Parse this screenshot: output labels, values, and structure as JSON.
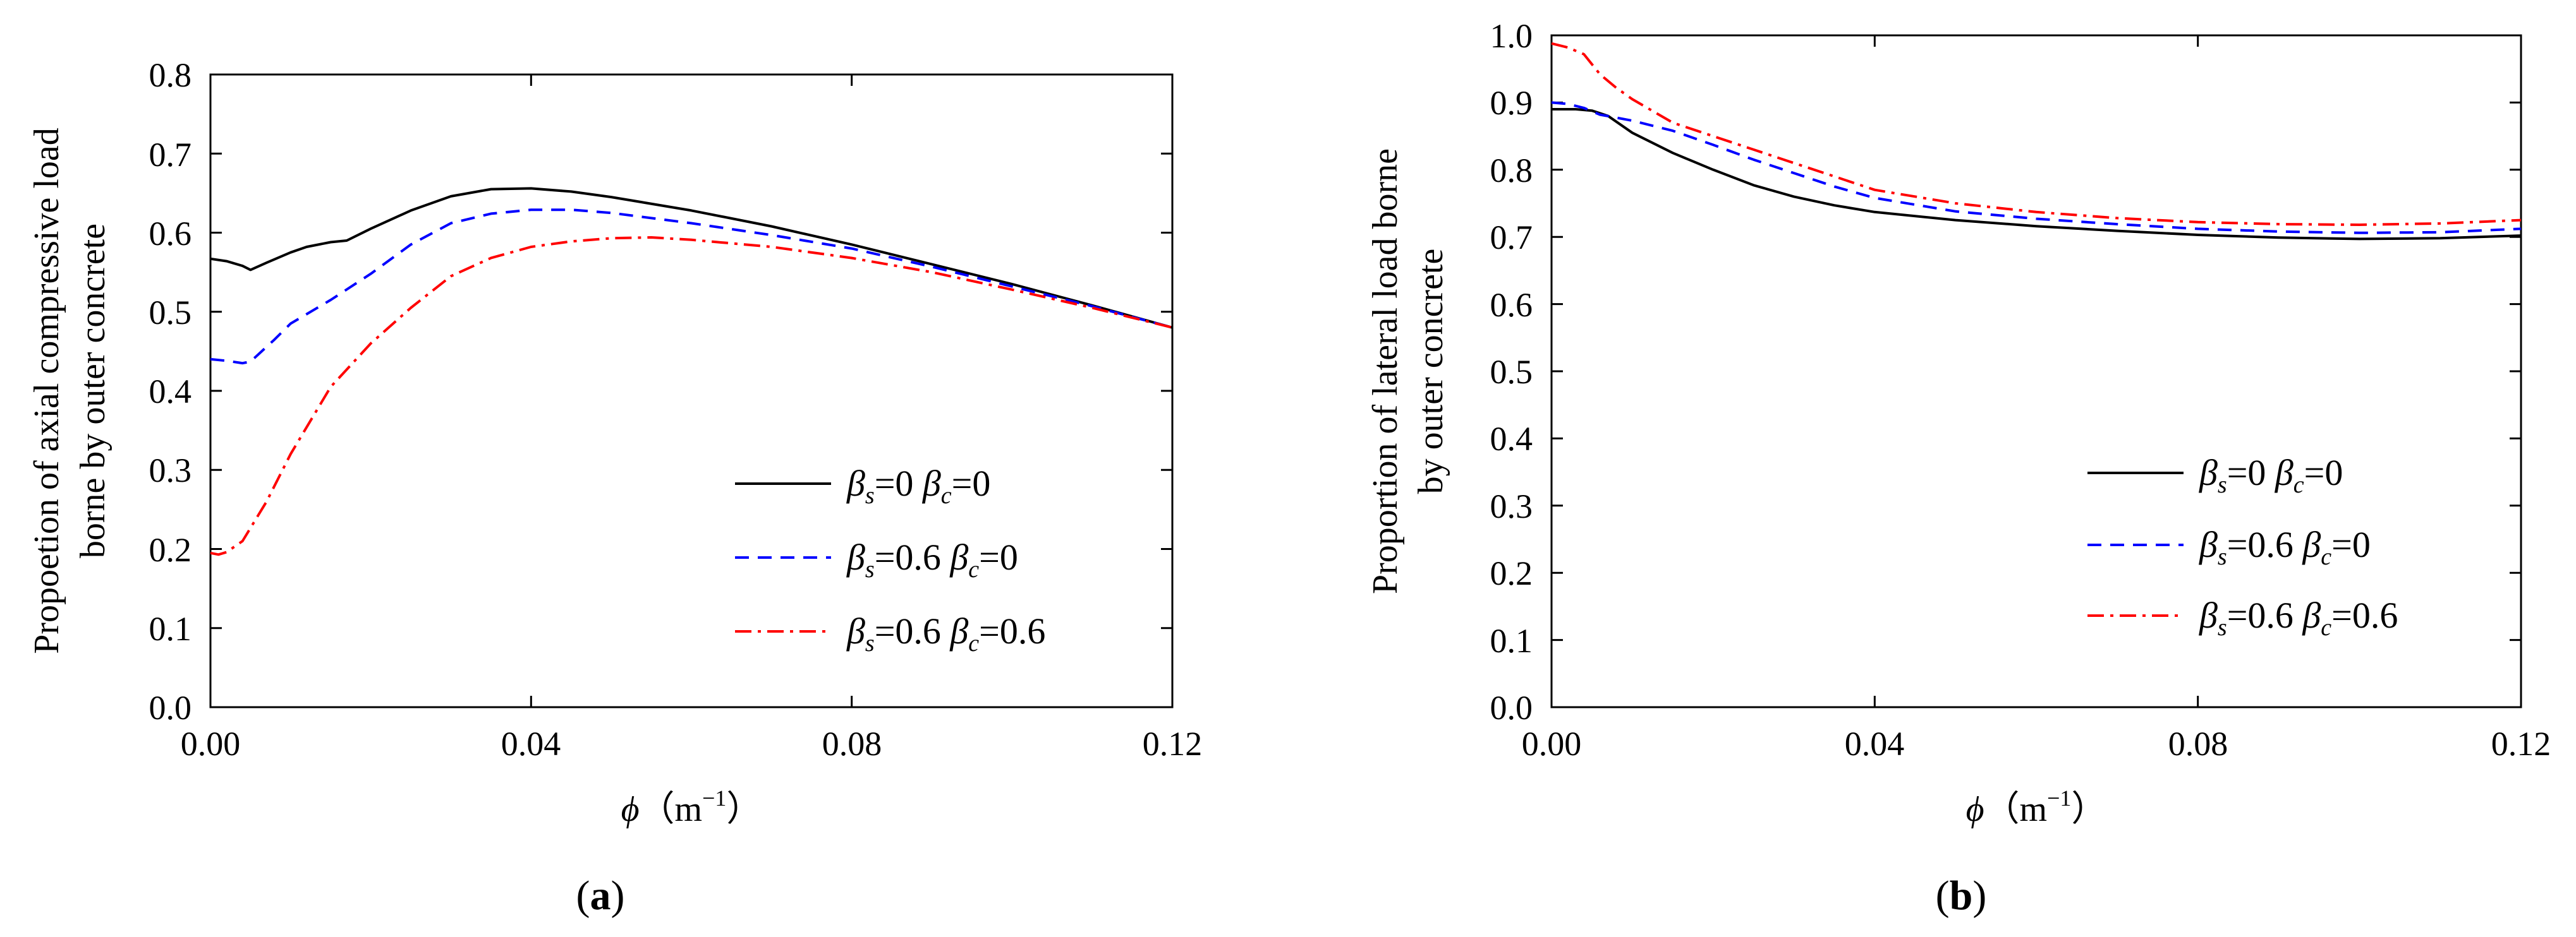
{
  "chart_data": [
    {
      "type": "line",
      "panel_label_open": "(",
      "panel_label_letter": "a",
      "panel_label_close": ")",
      "ylabel": "Propoetion of axial compressive load",
      "ylabel_line2": "borne by outer concrete",
      "xlabel_symbol": "ϕ",
      "xlabel_unit": "（m",
      "xlabel_exp": "−1",
      "xlabel_close": "）",
      "xlim": [
        0,
        0.12
      ],
      "ylim": [
        0,
        0.8
      ],
      "x_ticks": [
        0,
        0.04,
        0.08,
        0.12
      ],
      "x_tick_labels": [
        "0.00",
        "0.04",
        "0.08",
        "0.12"
      ],
      "y_ticks": [
        0,
        0.1,
        0.2,
        0.3,
        0.4,
        0.5,
        0.6,
        0.7,
        0.8
      ],
      "y_tick_labels": [
        "0.0",
        "0.1",
        "0.2",
        "0.3",
        "0.4",
        "0.5",
        "0.6",
        "0.7",
        "0.8"
      ],
      "legend_position": "center-right",
      "series": [
        {
          "beta_s": "0",
          "beta_c": "0",
          "color": "#000000",
          "dash": "solid",
          "x": [
            0,
            0.002,
            0.004,
            0.005,
            0.007,
            0.01,
            0.012,
            0.015,
            0.017,
            0.02,
            0.025,
            0.03,
            0.035,
            0.04,
            0.045,
            0.05,
            0.06,
            0.07,
            0.08,
            0.09,
            0.1,
            0.11,
            0.12
          ],
          "values": [
            0.567,
            0.564,
            0.558,
            0.553,
            0.562,
            0.575,
            0.582,
            0.588,
            0.59,
            0.605,
            0.628,
            0.646,
            0.655,
            0.656,
            0.652,
            0.645,
            0.628,
            0.608,
            0.585,
            0.56,
            0.535,
            0.508,
            0.48
          ]
        },
        {
          "beta_s": "0.6",
          "beta_c": "0",
          "color": "#0000ff",
          "dash": "dashed",
          "x": [
            0,
            0.002,
            0.004,
            0.005,
            0.008,
            0.01,
            0.015,
            0.02,
            0.025,
            0.03,
            0.035,
            0.04,
            0.045,
            0.05,
            0.06,
            0.07,
            0.08,
            0.09,
            0.1,
            0.11,
            0.12
          ],
          "values": [
            0.44,
            0.438,
            0.435,
            0.437,
            0.465,
            0.485,
            0.515,
            0.548,
            0.585,
            0.612,
            0.624,
            0.629,
            0.629,
            0.625,
            0.612,
            0.597,
            0.58,
            0.557,
            0.532,
            0.507,
            0.48
          ]
        },
        {
          "beta_s": "0.6",
          "beta_c": "0.6",
          "color": "#ff0000",
          "dash": "dashdot",
          "x": [
            0,
            0.001,
            0.002,
            0.004,
            0.007,
            0.01,
            0.015,
            0.02,
            0.025,
            0.03,
            0.035,
            0.04,
            0.045,
            0.05,
            0.055,
            0.06,
            0.07,
            0.08,
            0.09,
            0.1,
            0.11,
            0.12
          ],
          "values": [
            0.195,
            0.193,
            0.196,
            0.21,
            0.26,
            0.32,
            0.405,
            0.46,
            0.505,
            0.545,
            0.568,
            0.582,
            0.589,
            0.593,
            0.594,
            0.591,
            0.582,
            0.568,
            0.55,
            0.528,
            0.505,
            0.48
          ]
        }
      ]
    },
    {
      "type": "line",
      "panel_label_open": "(",
      "panel_label_letter": "b",
      "panel_label_close": ")",
      "ylabel": "Proportion of lateral load borne",
      "ylabel_line2": "by outer concrete",
      "xlabel_symbol": "ϕ",
      "xlabel_unit": "（m",
      "xlabel_exp": "−1",
      "xlabel_close": "）",
      "xlim": [
        0,
        0.12
      ],
      "ylim": [
        0,
        1.0
      ],
      "x_ticks": [
        0,
        0.04,
        0.08,
        0.12
      ],
      "x_tick_labels": [
        "0.00",
        "0.04",
        "0.08",
        "0.12"
      ],
      "y_ticks": [
        0,
        0.1,
        0.2,
        0.3,
        0.4,
        0.5,
        0.6,
        0.7,
        0.8,
        0.9,
        1.0
      ],
      "y_tick_labels": [
        "0.0",
        "0.1",
        "0.2",
        "0.3",
        "0.4",
        "0.5",
        "0.6",
        "0.7",
        "0.8",
        "0.9",
        "1.0"
      ],
      "legend_position": "center-right",
      "series": [
        {
          "beta_s": "0",
          "beta_c": "0",
          "color": "#000000",
          "dash": "solid",
          "x": [
            0,
            0.003,
            0.005,
            0.007,
            0.01,
            0.015,
            0.02,
            0.025,
            0.03,
            0.035,
            0.04,
            0.05,
            0.06,
            0.07,
            0.08,
            0.09,
            0.1,
            0.11,
            0.12
          ],
          "values": [
            0.89,
            0.89,
            0.888,
            0.88,
            0.855,
            0.825,
            0.8,
            0.777,
            0.76,
            0.747,
            0.737,
            0.725,
            0.716,
            0.709,
            0.703,
            0.699,
            0.697,
            0.698,
            0.702
          ]
        },
        {
          "beta_s": "0.6",
          "beta_c": "0",
          "color": "#0000ff",
          "dash": "dashed",
          "x": [
            0,
            0.002,
            0.004,
            0.006,
            0.01,
            0.015,
            0.02,
            0.025,
            0.03,
            0.035,
            0.04,
            0.05,
            0.06,
            0.07,
            0.08,
            0.09,
            0.1,
            0.11,
            0.12
          ],
          "values": [
            0.9,
            0.898,
            0.892,
            0.882,
            0.873,
            0.858,
            0.837,
            0.815,
            0.795,
            0.775,
            0.758,
            0.738,
            0.727,
            0.719,
            0.712,
            0.708,
            0.706,
            0.707,
            0.712
          ]
        },
        {
          "beta_s": "0.6",
          "beta_c": "0.6",
          "color": "#ff0000",
          "dash": "dashdot",
          "x": [
            0,
            0.002,
            0.004,
            0.006,
            0.008,
            0.01,
            0.015,
            0.02,
            0.025,
            0.03,
            0.035,
            0.04,
            0.05,
            0.06,
            0.07,
            0.08,
            0.09,
            0.1,
            0.11,
            0.12
          ],
          "values": [
            0.988,
            0.982,
            0.972,
            0.942,
            0.922,
            0.905,
            0.87,
            0.85,
            0.83,
            0.81,
            0.79,
            0.77,
            0.75,
            0.737,
            0.728,
            0.722,
            0.719,
            0.718,
            0.72,
            0.725
          ]
        }
      ]
    }
  ]
}
